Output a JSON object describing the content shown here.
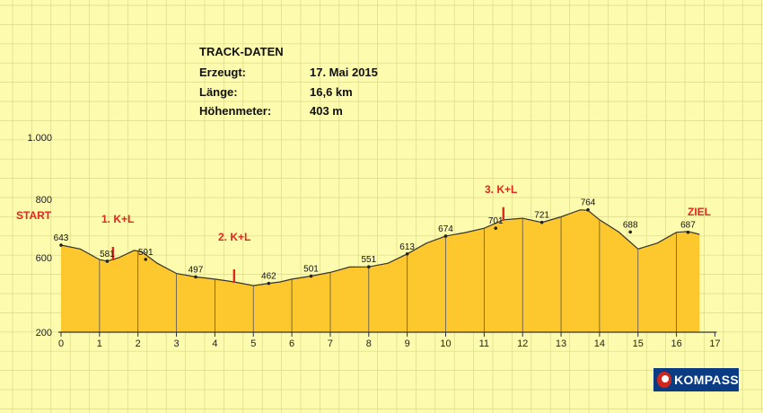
{
  "track_info": {
    "heading": "TRACK-DATEN",
    "rows": [
      {
        "label": "Erzeugt:",
        "value": "17. Mai 2015"
      },
      {
        "label": "Länge:",
        "value": "16,6 km"
      },
      {
        "label": "Höhenmeter:",
        "value": "403 m"
      }
    ]
  },
  "logo": {
    "text": "KOMPASS"
  },
  "colors": {
    "fill": "#fdc72e",
    "background": "#fdfbad",
    "grid": "#dcd98a",
    "accent": "#e0281e",
    "logo_bg": "#0b3b83"
  },
  "chart_data": {
    "type": "area",
    "title": "",
    "xlabel": "",
    "ylabel": "",
    "xlim": [
      0,
      17
    ],
    "ylim": [
      0,
      1000
    ],
    "x_ticks": [
      0,
      1,
      2,
      3,
      4,
      5,
      6,
      7,
      8,
      9,
      10,
      11,
      12,
      13,
      14,
      15,
      16,
      17
    ],
    "y_ticks": [
      {
        "value": 200,
        "label": "200"
      },
      {
        "value": 600,
        "label": "600"
      },
      {
        "value": 800,
        "label": "800"
      },
      {
        "value": 1000,
        "label": "1.000"
      }
    ],
    "grid": true,
    "x": [
      0,
      0.5,
      1,
      1.2,
      1.5,
      1.9,
      2.1,
      2.5,
      3,
      3.5,
      4,
      4.5,
      5,
      5.4,
      5.7,
      6,
      6.5,
      7,
      7.5,
      8,
      8.5,
      9,
      9.5,
      10,
      10.5,
      11,
      11.5,
      12,
      12.5,
      13,
      13.5,
      13.7,
      14,
      14.5,
      15,
      15.5,
      16,
      16.3,
      16.6
    ],
    "elevation": [
      643,
      630,
      590,
      581,
      600,
      625,
      620,
      570,
      515,
      497,
      485,
      470,
      450,
      462,
      470,
      485,
      501,
      521,
      550,
      551,
      570,
      613,
      650,
      674,
      686,
      701,
      730,
      735,
      721,
      740,
      764,
      762,
      730,
      688,
      630,
      650,
      687,
      690,
      680
    ],
    "point_labels": [
      {
        "x": 0,
        "value": 643,
        "label": "643"
      },
      {
        "x": 1.2,
        "value": 581,
        "label": "581"
      },
      {
        "x": 2.2,
        "value": 591,
        "label": "591"
      },
      {
        "x": 3.5,
        "value": 497,
        "label": "497"
      },
      {
        "x": 5.4,
        "value": 462,
        "label": "462"
      },
      {
        "x": 6.5,
        "value": 501,
        "label": "501"
      },
      {
        "x": 8,
        "value": 551,
        "label": "551"
      },
      {
        "x": 9,
        "value": 613,
        "label": "613"
      },
      {
        "x": 10,
        "value": 674,
        "label": "674"
      },
      {
        "x": 11.3,
        "value": 701,
        "label": "701"
      },
      {
        "x": 12.5,
        "value": 721,
        "label": "721"
      },
      {
        "x": 13.7,
        "value": 764,
        "label": "764"
      },
      {
        "x": 14.8,
        "value": 688,
        "label": "688"
      },
      {
        "x": 16.3,
        "value": 687,
        "label": "687"
      }
    ],
    "annotations": [
      {
        "label": "START",
        "x": 0
      },
      {
        "label": "1. K+L",
        "x": 1.35
      },
      {
        "label": "2. K+L",
        "x": 4.5
      },
      {
        "label": "3. K+L",
        "x": 11.5
      },
      {
        "label": "ZIEL",
        "x": 16.6
      }
    ],
    "stop_markers": [
      1.35,
      4.5,
      11.5
    ]
  }
}
